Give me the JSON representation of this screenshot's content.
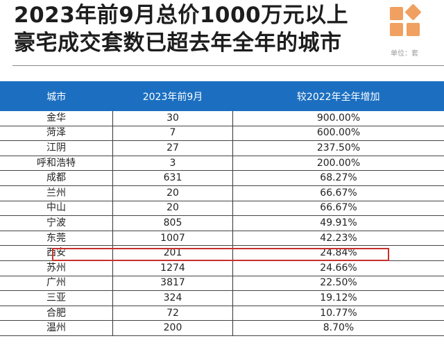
{
  "title": {
    "line1": "2023年前9月总价1000万元以上",
    "line2": "豪宅成交套数已超去年全年的城市"
  },
  "unit": "单位：套",
  "accent_color": "#1c6fc0",
  "highlight_color": "#c8302c",
  "table": {
    "headers": [
      "城市",
      "2023年前9月",
      "较2022年全年增加"
    ],
    "rows": [
      [
        "金华",
        "30",
        "900.00%"
      ],
      [
        "菏泽",
        "7",
        "600.00%"
      ],
      [
        "江阴",
        "27",
        "237.50%"
      ],
      [
        "呼和浩特",
        "3",
        "200.00%"
      ],
      [
        "成都",
        "631",
        "68.27%"
      ],
      [
        "兰州",
        "20",
        "66.67%"
      ],
      [
        "中山",
        "20",
        "66.67%"
      ],
      [
        "宁波",
        "805",
        "49.91%"
      ],
      [
        "东莞",
        "1007",
        "42.23%"
      ],
      [
        "西安",
        "201",
        "24.84%"
      ],
      [
        "苏州",
        "1274",
        "24.66%"
      ],
      [
        "广州",
        "3817",
        "22.50%"
      ],
      [
        "三亚",
        "324",
        "19.12%"
      ],
      [
        "合肥",
        "72",
        "10.77%"
      ],
      [
        "温州",
        "200",
        "8.70%"
      ]
    ]
  }
}
